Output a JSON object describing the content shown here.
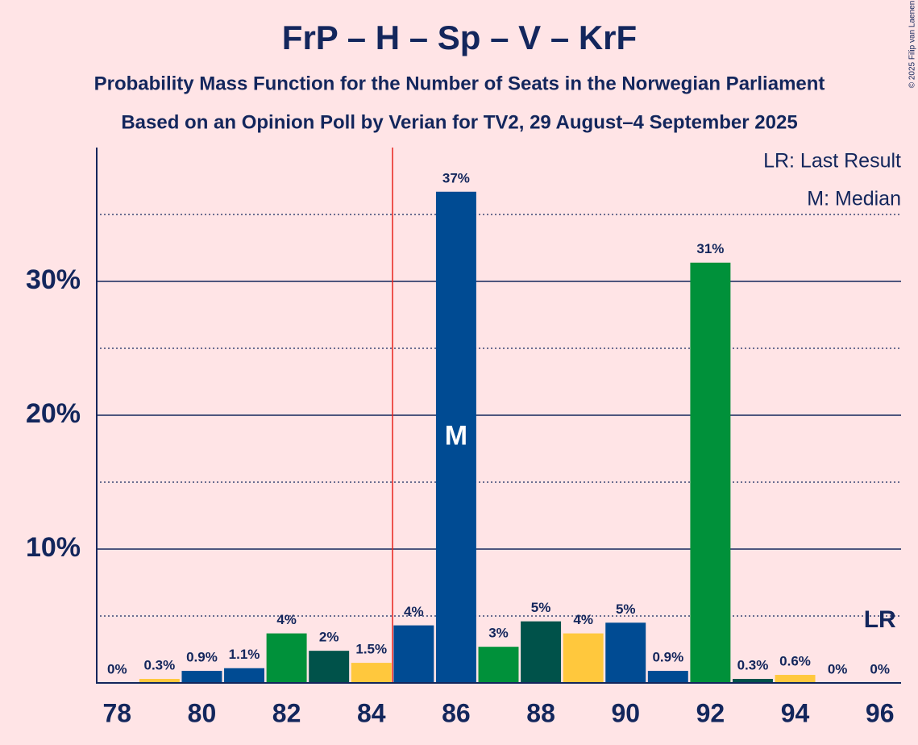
{
  "chart_data": {
    "type": "bar",
    "title": "FrP – H – Sp – V – KrF",
    "subtitle": "Probability Mass Function for the Number of Seats in the Norwegian Parliament",
    "subtitle2": "Based on an Opinion Poll by Verian for TV2, 29 August–4 September 2025",
    "copyright": "© 2025 Filip van Laenen",
    "legend": [
      "LR: Last Result",
      "M: Median"
    ],
    "x": [
      78,
      79,
      80,
      81,
      82,
      83,
      84,
      85,
      86,
      87,
      88,
      89,
      90,
      91,
      92,
      93,
      94,
      95,
      96
    ],
    "values": [
      0,
      0.3,
      0.9,
      1.1,
      3.7,
      2.4,
      1.5,
      4.3,
      36.7,
      2.7,
      4.6,
      3.7,
      4.5,
      0.9,
      31.4,
      0.3,
      0.6,
      0,
      0
    ],
    "value_labels": [
      "0%",
      "0.3%",
      "0.9%",
      "1.1%",
      "4%",
      "2%",
      "1.5%",
      "4%",
      "37%",
      "3%",
      "5%",
      "4%",
      "5%",
      "0.9%",
      "31%",
      "0.3%",
      "0.6%",
      "0%",
      "0%"
    ],
    "colors": [
      "#004B93",
      "#FFC83D",
      "#004B93",
      "#004B93",
      "#00913A",
      "#00524A",
      "#FFC83D",
      "#004B93",
      "#004B93",
      "#00913A",
      "#00524A",
      "#FFC83D",
      "#004B93",
      "#004B93",
      "#00913A",
      "#00524A",
      "#FFC83D",
      "#004B93",
      "#004B93"
    ],
    "xlim": [
      77.5,
      96.5
    ],
    "xticks": [
      78,
      80,
      82,
      84,
      86,
      88,
      90,
      92,
      94,
      96
    ],
    "ylim": [
      0,
      40
    ],
    "yticks": [
      {
        "value": 10,
        "label": "10%"
      },
      {
        "value": 20,
        "label": "20%"
      },
      {
        "value": 30,
        "label": "30%"
      }
    ],
    "minor_yticks": [
      5,
      15,
      25,
      35
    ],
    "grid": true,
    "majority_line": 84.5,
    "median": 86,
    "median_label": "M",
    "last_result": 96,
    "last_result_label": "LR"
  }
}
